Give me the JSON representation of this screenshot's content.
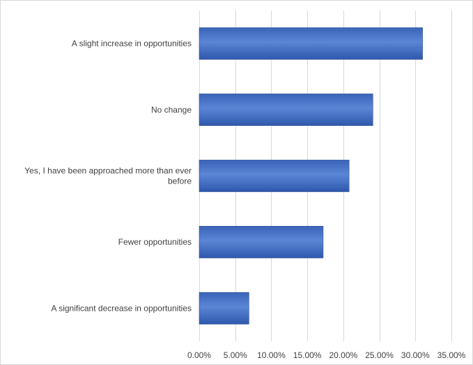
{
  "chart_data": {
    "type": "bar",
    "orientation": "horizontal",
    "categories": [
      "A slight increase in opportunities",
      "No change",
      "Yes, I have been approached more than ever before",
      "Fewer opportunities",
      "A significant decrease in opportunities"
    ],
    "category_lines": [
      [
        "A slight increase in opportunities"
      ],
      [
        "No change"
      ],
      [
        "Yes, I have been approached more than ever",
        "before"
      ],
      [
        "Fewer opportunities"
      ],
      [
        "A significant decrease in opportunities"
      ]
    ],
    "values": [
      0.31,
      0.241,
      0.208,
      0.172,
      0.069
    ],
    "xlim": [
      0,
      0.35
    ],
    "x_ticks": [
      0,
      0.05,
      0.1,
      0.15,
      0.2,
      0.25,
      0.3,
      0.35
    ],
    "x_tick_labels": [
      "0.00%",
      "5.00%",
      "10.00%",
      "15.00%",
      "20.00%",
      "25.00%",
      "30.00%",
      "35.00%"
    ],
    "title": "",
    "xlabel": "",
    "ylabel": "",
    "grid": "vertical",
    "legend": "none",
    "bar_color": "#4472c4"
  }
}
